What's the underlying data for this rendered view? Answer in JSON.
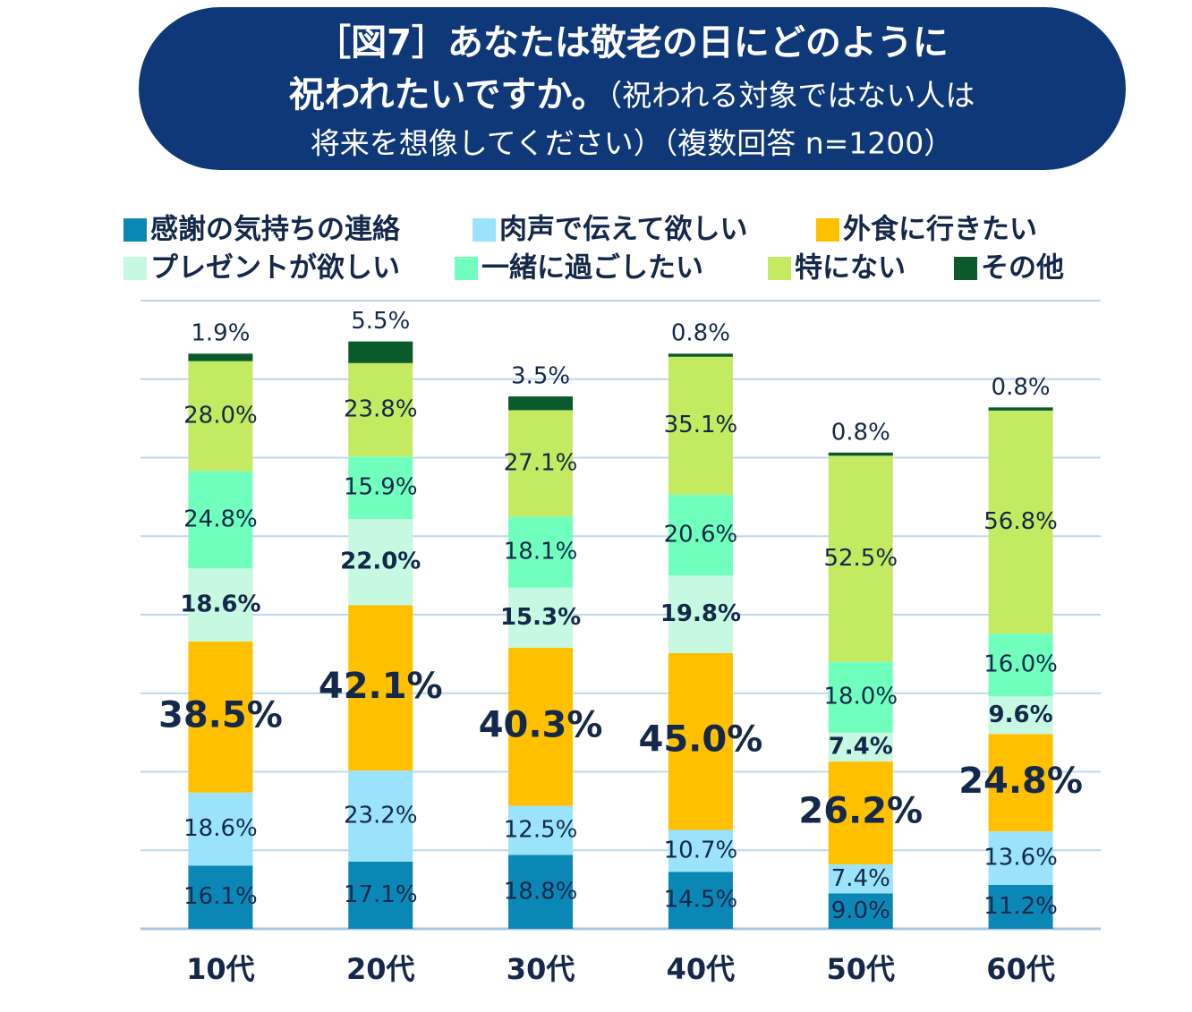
{
  "chart_data": {
    "type": "stacked_bar",
    "title_parts": [
      "［図7］あなたは敬老の日にどのように",
      "祝われたいですか。",
      "（祝われる対象ではない人は",
      "将来を想像してください）（複数回答 n=1200）"
    ],
    "categories": [
      "10代",
      "20代",
      "30代",
      "40代",
      "50代",
      "60代"
    ],
    "series": [
      {
        "name": "感謝の気持ちの連絡",
        "color": "#0b87b5",
        "values": [
          16.1,
          17.1,
          18.8,
          14.5,
          9.0,
          11.2
        ],
        "value_labels": [
          "16.1%",
          "17.1%",
          "18.8%",
          "14.5%",
          "9.0%",
          "11.2%"
        ]
      },
      {
        "name": "肉声で伝えて欲しい",
        "color": "#9ae3fb",
        "values": [
          18.6,
          23.2,
          12.5,
          10.7,
          7.4,
          13.6
        ],
        "value_labels": [
          "18.6%",
          "23.2%",
          "12.5%",
          "10.7%",
          "7.4%",
          "13.6%"
        ]
      },
      {
        "name": "外食に行きたい",
        "color": "#ffc000",
        "values": [
          38.5,
          42.1,
          40.3,
          45.0,
          26.2,
          24.8
        ],
        "value_labels": [
          "38.5%",
          "42.1%",
          "40.3%",
          "45.0%",
          "26.2%",
          "24.8%"
        ]
      },
      {
        "name": "プレゼントが欲しい",
        "color": "#c6f8e2",
        "values": [
          18.6,
          22.0,
          15.3,
          19.8,
          7.4,
          9.6
        ],
        "value_labels": [
          "18.6%",
          "22.0%",
          "15.3%",
          "19.8%",
          "7.4%",
          "9.6%"
        ]
      },
      {
        "name": "一緒に過ごしたい",
        "color": "#70ffbd",
        "values": [
          24.8,
          15.9,
          18.1,
          20.6,
          18.0,
          16.0
        ],
        "value_labels": [
          "24.8%",
          "15.9%",
          "18.1%",
          "20.6%",
          "18.0%",
          "16.0%"
        ]
      },
      {
        "name": "特にない",
        "color": "#c3ea60",
        "values": [
          28.0,
          23.8,
          27.1,
          35.1,
          52.5,
          56.8
        ],
        "value_labels": [
          "28.0%",
          "23.8%",
          "27.1%",
          "35.1%",
          "52.5%",
          "56.8%"
        ]
      },
      {
        "name": "その他",
        "color": "#0b5a2b",
        "values": [
          1.9,
          5.5,
          3.5,
          0.8,
          0.8,
          0.8
        ],
        "value_labels": [
          "1.9%",
          "5.5%",
          "3.5%",
          "0.8%",
          "0.8%",
          "0.8%"
        ]
      }
    ],
    "ylim": [
      0,
      160
    ],
    "yticks": [
      0,
      20,
      40,
      60,
      80,
      100,
      120,
      140,
      160
    ],
    "grid": true
  }
}
